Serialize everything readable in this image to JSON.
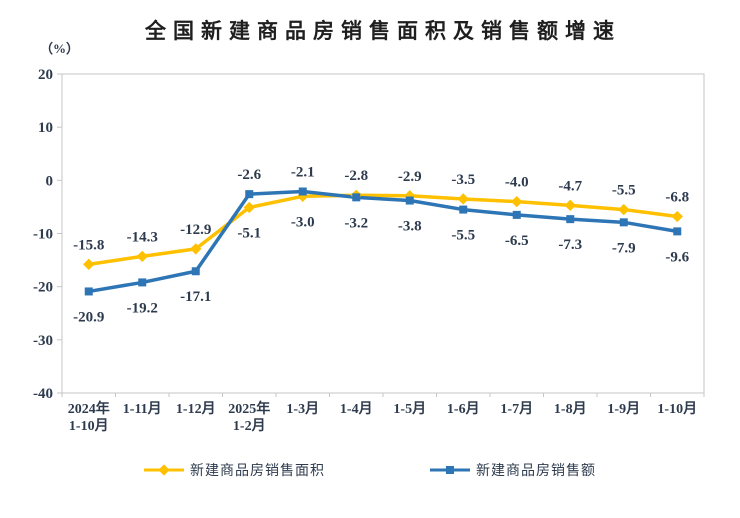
{
  "title": "全国新建商品房销售面积及销售额增速",
  "y_unit_label": "（%）",
  "chart_data": {
    "type": "line",
    "title": "全国新建商品房销售面积及销售额增速",
    "ylabel": "（%）",
    "xlabel": "",
    "ylim": [
      -40,
      20
    ],
    "y_ticks": [
      20,
      10,
      0,
      -10,
      -20,
      -30,
      -40
    ],
    "grid": false,
    "legend_position": "bottom",
    "axis_color": "#c6c6c6",
    "text_color": "#2e3b4e",
    "categories": [
      "2024年\n1-10月",
      "1-11月",
      "1-12月",
      "2025年\n1-2月",
      "1-3月",
      "1-4月",
      "1-5月",
      "1-6月",
      "1-7月",
      "1-8月",
      "1-9月",
      "1-10月"
    ],
    "series": [
      {
        "name": "新建商品房销售面积",
        "color": "#FFC000",
        "marker": "diamond",
        "values": [
          -15.8,
          -14.3,
          -12.9,
          -5.1,
          -3.0,
          -2.8,
          -2.9,
          -3.5,
          -4.0,
          -4.7,
          -5.5,
          -6.8
        ]
      },
      {
        "name": "新建商品房销售额",
        "color": "#2E75B6",
        "marker": "square",
        "values": [
          -20.9,
          -19.2,
          -17.1,
          -2.6,
          -2.1,
          -3.2,
          -3.8,
          -5.5,
          -6.5,
          -7.3,
          -7.9,
          -9.6
        ]
      }
    ]
  }
}
